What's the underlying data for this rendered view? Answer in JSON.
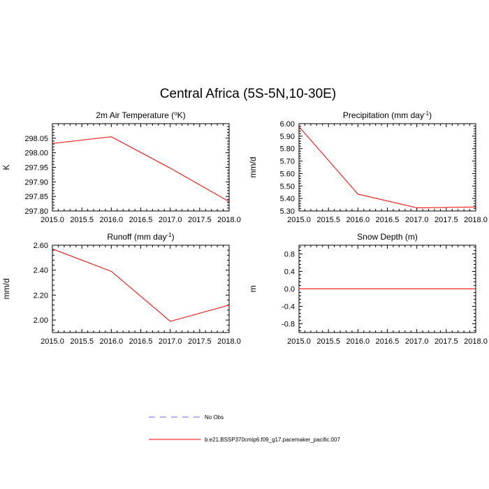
{
  "figure": {
    "title": "Central Africa (5S-5N,10-30E)"
  },
  "legend": [
    {
      "label": "No Obs",
      "color": "#6a6af0",
      "dash": true
    },
    {
      "label": "b.e21.BSSP370cmip6.f09_g17.pacemaker_pacific.007",
      "color": "#ff0000",
      "dash": false
    }
  ],
  "chart_data": [
    {
      "type": "line",
      "title": "2m Air Temperature (°K)",
      "title_parts": {
        "main": "2m Air Temperature (",
        "sup": "o",
        "tail": "K)"
      },
      "xlabel": "",
      "ylabel": "K",
      "xlim": [
        2015.0,
        2018.0
      ],
      "ylim": [
        297.8,
        298.1
      ],
      "x_ticks": [
        "2015.0",
        "2015.5",
        "2016.0",
        "2016.5",
        "2017.0",
        "2017.5",
        "2018.0"
      ],
      "y_ticks": [
        "297.80",
        "297.85",
        "297.90",
        "297.95",
        "298.00",
        "298.05"
      ],
      "series": [
        {
          "color": "#ff0000",
          "x": [
            2015,
            2016,
            2017,
            2018
          ],
          "y": [
            298.032,
            298.055,
            297.947,
            297.832
          ]
        }
      ]
    },
    {
      "type": "line",
      "title": "Precipitation (mm day-1)",
      "title_parts": {
        "main": "Precipitation (mm day",
        "sup": "-1",
        "tail": ")"
      },
      "xlabel": "",
      "ylabel": "mm/d",
      "xlim": [
        2015.0,
        2018.0
      ],
      "ylim": [
        5.3,
        6.0
      ],
      "x_ticks": [
        "2015.0",
        "2015.5",
        "2016.0",
        "2016.5",
        "2017.0",
        "2017.5",
        "2018.0"
      ],
      "y_ticks": [
        "5.30",
        "5.40",
        "5.50",
        "5.60",
        "5.70",
        "5.80",
        "5.90",
        "6.00"
      ],
      "series": [
        {
          "color": "#ff0000",
          "x": [
            2015,
            2016,
            2017,
            2018
          ],
          "y": [
            5.975,
            5.435,
            5.325,
            5.332
          ]
        }
      ]
    },
    {
      "type": "line",
      "title": "Runoff (mm day-1)",
      "title_parts": {
        "main": "Runoff (mm day",
        "sup": "-1",
        "tail": ")"
      },
      "xlabel": "",
      "ylabel": "mm/d",
      "xlim": [
        2015.0,
        2018.0
      ],
      "ylim": [
        1.9,
        2.6
      ],
      "x_ticks": [
        "2015.0",
        "2015.5",
        "2016.0",
        "2016.5",
        "2017.0",
        "2017.5",
        "2018.0"
      ],
      "y_ticks": [
        "2.00",
        "2.20",
        "2.40",
        "2.60"
      ],
      "series": [
        {
          "color": "#ff0000",
          "x": [
            2015,
            2016,
            2017,
            2018
          ],
          "y": [
            2.57,
            2.39,
            1.99,
            2.12
          ]
        }
      ]
    },
    {
      "type": "line",
      "title": "Snow Depth (m)",
      "title_parts": {
        "main": "Snow Depth (m)",
        "sup": "",
        "tail": ""
      },
      "xlabel": "",
      "ylabel": "m",
      "xlim": [
        2015.0,
        2018.0
      ],
      "ylim": [
        -1.0,
        1.0
      ],
      "x_ticks": [
        "2015.0",
        "2015.5",
        "2016.0",
        "2016.5",
        "2017.0",
        "2017.5",
        "2018.0"
      ],
      "y_ticks": [
        "-0.8",
        "-0.4",
        "0.0",
        "0.4",
        "0.8"
      ],
      "series": [
        {
          "color": "#ff0000",
          "x": [
            2015,
            2016,
            2017,
            2018
          ],
          "y": [
            0.0,
            0.0,
            0.0,
            0.0
          ]
        }
      ]
    }
  ]
}
